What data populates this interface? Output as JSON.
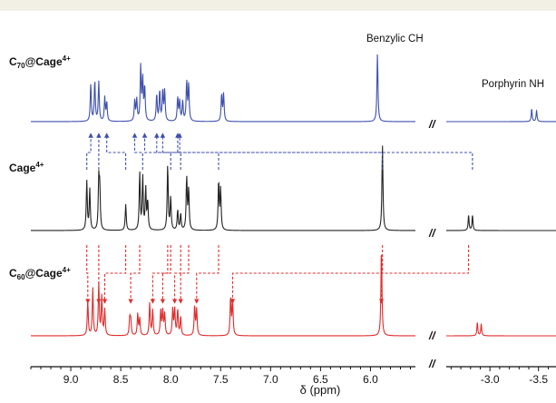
{
  "figure": {
    "annotations": {
      "benzylic": "Benzylic CH",
      "porphyrin": "Porphyrin NH"
    },
    "break_mark": "//"
  },
  "chart_data": {
    "type": "line",
    "xlabel": "δ (ppm)",
    "x_axis": {
      "reversed": true,
      "broken": true,
      "segments": [
        [
          9.4,
          5.55
        ],
        [
          -2.55,
          -3.68
        ]
      ],
      "ticks": [
        "9.0",
        "8.5",
        "8.0",
        "7.5",
        "7.0",
        "6.5",
        "6.0",
        "-3.0",
        "-3.5"
      ]
    },
    "series": [
      {
        "name": "C70@Cage4+",
        "name_main": "C",
        "name_sub": "70",
        "name_rest": "@Cage",
        "name_sup": "4+",
        "color": "#3d4fae",
        "peaks": [
          [
            8.8,
            0.55
          ],
          [
            8.76,
            0.6
          ],
          [
            8.72,
            0.58
          ],
          [
            8.66,
            0.35
          ],
          [
            8.64,
            0.28
          ],
          [
            8.36,
            0.3
          ],
          [
            8.34,
            0.32
          ],
          [
            8.3,
            0.8
          ],
          [
            8.28,
            0.6
          ],
          [
            8.26,
            0.5
          ],
          [
            8.14,
            0.4
          ],
          [
            8.11,
            0.45
          ],
          [
            8.08,
            0.45
          ],
          [
            8.06,
            0.45
          ],
          [
            7.93,
            0.35
          ],
          [
            7.91,
            0.3
          ],
          [
            7.88,
            0.3
          ],
          [
            7.84,
            0.58
          ],
          [
            7.82,
            0.55
          ],
          [
            7.49,
            0.4
          ],
          [
            7.47,
            0.4
          ],
          [
            5.93,
            1.0
          ],
          [
            -3.43,
            0.18
          ],
          [
            -3.48,
            0.16
          ]
        ]
      },
      {
        "name": "Cage4+",
        "name_main": "Cage",
        "name_sub": "",
        "name_rest": "",
        "name_sup": "4+",
        "color": "#222222",
        "peaks": [
          [
            8.84,
            0.6
          ],
          [
            8.81,
            0.5
          ],
          [
            8.72,
            0.6
          ],
          [
            8.71,
            0.5
          ],
          [
            8.45,
            0.32
          ],
          [
            8.31,
            0.7
          ],
          [
            8.28,
            0.65
          ],
          [
            8.25,
            0.5
          ],
          [
            8.23,
            0.35
          ],
          [
            8.03,
            0.8
          ],
          [
            8.0,
            0.4
          ],
          [
            7.93,
            0.25
          ],
          [
            7.9,
            0.2
          ],
          [
            7.84,
            0.65
          ],
          [
            7.82,
            0.5
          ],
          [
            7.52,
            0.6
          ],
          [
            7.5,
            0.5
          ],
          [
            5.88,
            1.05
          ],
          [
            -2.78,
            0.18
          ],
          [
            -2.82,
            0.18
          ]
        ]
      },
      {
        "name": "C60@Cage4+",
        "name_main": "C",
        "name_sub": "60",
        "name_rest": "@Cage",
        "name_sup": "4+",
        "color": "#e02c2c",
        "peaks": [
          [
            8.83,
            0.4
          ],
          [
            8.78,
            0.55
          ],
          [
            8.72,
            0.6
          ],
          [
            8.69,
            0.45
          ],
          [
            8.66,
            0.3
          ],
          [
            8.41,
            0.2
          ],
          [
            8.4,
            0.18
          ],
          [
            8.33,
            0.25
          ],
          [
            8.31,
            0.2
          ],
          [
            8.21,
            0.38
          ],
          [
            8.18,
            0.3
          ],
          [
            8.1,
            0.28
          ],
          [
            8.08,
            0.3
          ],
          [
            8.06,
            0.25
          ],
          [
            7.98,
            0.3
          ],
          [
            7.96,
            0.32
          ],
          [
            7.93,
            0.3
          ],
          [
            7.9,
            0.22
          ],
          [
            7.76,
            0.35
          ],
          [
            7.74,
            0.3
          ],
          [
            7.4,
            0.45
          ],
          [
            7.38,
            0.4
          ],
          [
            5.89,
            1.05
          ],
          [
            -2.87,
            0.15
          ],
          [
            -2.91,
            0.13
          ]
        ]
      }
    ]
  }
}
